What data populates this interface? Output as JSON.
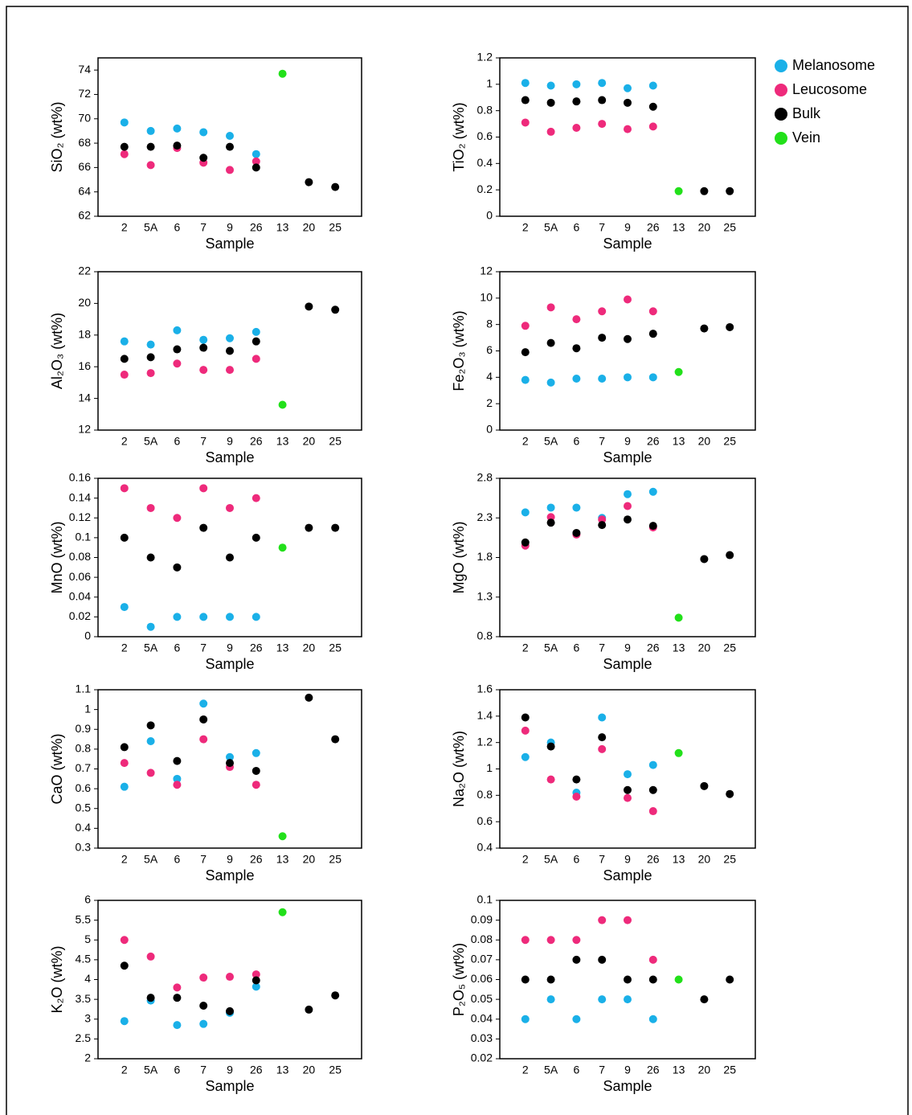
{
  "chart_data": [
    {
      "type": "scatter",
      "y_label": "SiO₂ (wt%)",
      "x_label": "Sample",
      "categories": [
        "2",
        "5A",
        "6",
        "7",
        "9",
        "26",
        "13",
        "20",
        "25"
      ],
      "ylim": [
        62,
        75
      ],
      "yticks": [
        62,
        64,
        66,
        68,
        70,
        72,
        74
      ],
      "series": [
        {
          "name": "Melanosome",
          "color": "#1ab0e8",
          "values": [
            69.7,
            69.0,
            69.2,
            68.9,
            68.6,
            67.1,
            null,
            null,
            null
          ]
        },
        {
          "name": "Leucosome",
          "color": "#ee2a7b",
          "values": [
            67.1,
            66.2,
            67.6,
            66.4,
            65.8,
            66.5,
            null,
            null,
            null
          ]
        },
        {
          "name": "Bulk",
          "color": "#000000",
          "values": [
            67.7,
            67.7,
            67.8,
            66.8,
            67.7,
            66.0,
            null,
            64.8,
            64.4
          ]
        },
        {
          "name": "Vein",
          "color": "#22e01a",
          "values": [
            null,
            null,
            null,
            null,
            null,
            null,
            73.7,
            null,
            null
          ]
        }
      ]
    },
    {
      "type": "scatter",
      "y_label": "TiO₂ (wt%)",
      "x_label": "Sample",
      "legend": "right",
      "categories": [
        "2",
        "5A",
        "6",
        "7",
        "9",
        "26",
        "13",
        "20",
        "25"
      ],
      "ylim": [
        0,
        1.2
      ],
      "yticks": [
        0,
        0.2,
        0.4,
        0.6,
        0.8,
        1,
        1.2
      ],
      "series": [
        {
          "name": "Melanosome",
          "color": "#1ab0e8",
          "values": [
            1.01,
            0.99,
            1.0,
            1.01,
            0.97,
            0.99,
            null,
            null,
            null
          ]
        },
        {
          "name": "Leucosome",
          "color": "#ee2a7b",
          "values": [
            0.71,
            0.64,
            0.67,
            0.7,
            0.66,
            0.68,
            null,
            null,
            null
          ]
        },
        {
          "name": "Bulk",
          "color": "#000000",
          "values": [
            0.88,
            0.86,
            0.87,
            0.88,
            0.86,
            0.83,
            null,
            0.19,
            0.19
          ]
        },
        {
          "name": "Vein",
          "color": "#22e01a",
          "values": [
            null,
            null,
            null,
            null,
            null,
            null,
            0.19,
            null,
            null
          ]
        }
      ]
    },
    {
      "type": "scatter",
      "y_label": "Al₂O₃ (wt%)",
      "x_label": "Sample",
      "categories": [
        "2",
        "5A",
        "6",
        "7",
        "9",
        "26",
        "13",
        "20",
        "25"
      ],
      "ylim": [
        12,
        22
      ],
      "yticks": [
        12,
        14,
        16,
        18,
        20,
        22
      ],
      "series": [
        {
          "name": "Melanosome",
          "color": "#1ab0e8",
          "values": [
            17.6,
            17.4,
            18.3,
            17.7,
            17.8,
            18.2,
            null,
            null,
            null
          ]
        },
        {
          "name": "Leucosome",
          "color": "#ee2a7b",
          "values": [
            15.5,
            15.6,
            16.2,
            15.8,
            15.8,
            16.5,
            null,
            null,
            null
          ]
        },
        {
          "name": "Bulk",
          "color": "#000000",
          "values": [
            16.5,
            16.6,
            17.1,
            17.2,
            17.0,
            17.6,
            null,
            19.8,
            19.6
          ]
        },
        {
          "name": "Vein",
          "color": "#22e01a",
          "values": [
            null,
            null,
            null,
            null,
            null,
            null,
            13.6,
            null,
            null
          ]
        }
      ]
    },
    {
      "type": "scatter",
      "y_label": "Fe₂O₃ (wt%)",
      "x_label": "Sample",
      "categories": [
        "2",
        "5A",
        "6",
        "7",
        "9",
        "26",
        "13",
        "20",
        "25"
      ],
      "ylim": [
        0,
        12
      ],
      "yticks": [
        0,
        2,
        4,
        6,
        8,
        10,
        12
      ],
      "series": [
        {
          "name": "Melanosome",
          "color": "#1ab0e8",
          "values": [
            3.8,
            3.6,
            3.9,
            3.9,
            4.0,
            4.0,
            null,
            null,
            null
          ]
        },
        {
          "name": "Leucosome",
          "color": "#ee2a7b",
          "values": [
            7.9,
            9.3,
            8.4,
            9.0,
            9.9,
            9.0,
            null,
            null,
            null
          ]
        },
        {
          "name": "Bulk",
          "color": "#000000",
          "values": [
            5.9,
            6.6,
            6.2,
            7.0,
            6.9,
            7.3,
            null,
            7.7,
            7.8
          ]
        },
        {
          "name": "Vein",
          "color": "#22e01a",
          "values": [
            null,
            null,
            null,
            null,
            null,
            null,
            4.4,
            null,
            null
          ]
        }
      ]
    },
    {
      "type": "scatter",
      "y_label": "MnO (wt%)",
      "x_label": "Sample",
      "categories": [
        "2",
        "5A",
        "6",
        "7",
        "9",
        "26",
        "13",
        "20",
        "25"
      ],
      "ylim": [
        0,
        0.16
      ],
      "yticks": [
        0,
        0.02,
        0.04,
        0.06,
        0.08,
        0.1,
        0.12,
        0.14,
        0.16
      ],
      "series": [
        {
          "name": "Melanosome",
          "color": "#1ab0e8",
          "values": [
            0.03,
            0.01,
            0.02,
            0.02,
            0.02,
            0.02,
            null,
            null,
            null
          ]
        },
        {
          "name": "Leucosome",
          "color": "#ee2a7b",
          "values": [
            0.15,
            0.13,
            0.12,
            0.15,
            0.13,
            0.14,
            null,
            null,
            null
          ]
        },
        {
          "name": "Bulk",
          "color": "#000000",
          "values": [
            0.1,
            0.08,
            0.07,
            0.11,
            0.08,
            0.1,
            null,
            0.11,
            0.11
          ]
        },
        {
          "name": "Vein",
          "color": "#22e01a",
          "values": [
            null,
            null,
            null,
            null,
            null,
            null,
            0.09,
            null,
            null
          ]
        }
      ]
    },
    {
      "type": "scatter",
      "y_label": "MgO (wt%)",
      "x_label": "Sample",
      "categories": [
        "2",
        "5A",
        "6",
        "7",
        "9",
        "26",
        "13",
        "20",
        "25"
      ],
      "ylim": [
        0.8,
        2.8
      ],
      "yticks": [
        0.8,
        1.3,
        1.8,
        2.3,
        2.8
      ],
      "series": [
        {
          "name": "Melanosome",
          "color": "#1ab0e8",
          "values": [
            2.37,
            2.43,
            2.43,
            2.3,
            2.6,
            2.63,
            null,
            null,
            null
          ]
        },
        {
          "name": "Leucosome",
          "color": "#ee2a7b",
          "values": [
            1.95,
            2.31,
            2.09,
            2.28,
            2.45,
            2.18,
            null,
            null,
            null
          ]
        },
        {
          "name": "Bulk",
          "color": "#000000",
          "values": [
            1.99,
            2.24,
            2.11,
            2.21,
            2.28,
            2.2,
            null,
            1.78,
            1.83
          ]
        },
        {
          "name": "Vein",
          "color": "#22e01a",
          "values": [
            null,
            null,
            null,
            null,
            null,
            null,
            1.04,
            null,
            null
          ]
        }
      ]
    },
    {
      "type": "scatter",
      "y_label": "CaO (wt%)",
      "x_label": "Sample",
      "categories": [
        "2",
        "5A",
        "6",
        "7",
        "9",
        "26",
        "13",
        "20",
        "25"
      ],
      "ylim": [
        0.3,
        1.1
      ],
      "yticks": [
        0.3,
        0.4,
        0.5,
        0.6,
        0.7,
        0.8,
        0.9,
        1,
        1.1
      ],
      "series": [
        {
          "name": "Melanosome",
          "color": "#1ab0e8",
          "values": [
            0.61,
            0.84,
            0.65,
            1.03,
            0.76,
            0.78,
            null,
            null,
            null
          ]
        },
        {
          "name": "Leucosome",
          "color": "#ee2a7b",
          "values": [
            0.73,
            0.68,
            0.62,
            0.85,
            0.71,
            0.62,
            null,
            null,
            null
          ]
        },
        {
          "name": "Bulk",
          "color": "#000000",
          "values": [
            0.81,
            0.92,
            0.74,
            0.95,
            0.73,
            0.69,
            null,
            1.06,
            0.85
          ]
        },
        {
          "name": "Vein",
          "color": "#22e01a",
          "values": [
            null,
            null,
            null,
            null,
            null,
            null,
            0.36,
            null,
            null
          ]
        }
      ]
    },
    {
      "type": "scatter",
      "y_label": "Na₂O (wt%)",
      "x_label": "Sample",
      "categories": [
        "2",
        "5A",
        "6",
        "7",
        "9",
        "26",
        "13",
        "20",
        "25"
      ],
      "ylim": [
        0.4,
        1.6
      ],
      "yticks": [
        0.4,
        0.6,
        0.8,
        1,
        1.2,
        1.4,
        1.6
      ],
      "series": [
        {
          "name": "Melanosome",
          "color": "#1ab0e8",
          "values": [
            1.09,
            1.2,
            0.82,
            1.39,
            0.96,
            1.03,
            null,
            null,
            null
          ]
        },
        {
          "name": "Leucosome",
          "color": "#ee2a7b",
          "values": [
            1.29,
            0.92,
            0.79,
            1.15,
            0.78,
            0.68,
            null,
            null,
            null
          ]
        },
        {
          "name": "Bulk",
          "color": "#000000",
          "values": [
            1.39,
            1.17,
            0.92,
            1.24,
            0.84,
            0.84,
            null,
            0.87,
            0.81
          ]
        },
        {
          "name": "Vein",
          "color": "#22e01a",
          "values": [
            null,
            null,
            null,
            null,
            null,
            null,
            1.12,
            null,
            null
          ]
        }
      ]
    },
    {
      "type": "scatter",
      "y_label": "K₂O (wt%)",
      "x_label": "Sample",
      "categories": [
        "2",
        "5A",
        "6",
        "7",
        "9",
        "26",
        "13",
        "20",
        "25"
      ],
      "ylim": [
        2,
        6
      ],
      "yticks": [
        2,
        2.5,
        3,
        3.5,
        4,
        4.5,
        5,
        5.5,
        6
      ],
      "series": [
        {
          "name": "Melanosome",
          "color": "#1ab0e8",
          "values": [
            2.95,
            3.47,
            2.85,
            2.88,
            3.16,
            3.82,
            null,
            null,
            null
          ]
        },
        {
          "name": "Leucosome",
          "color": "#ee2a7b",
          "values": [
            5.0,
            4.58,
            3.8,
            4.05,
            4.07,
            4.13,
            null,
            null,
            null
          ]
        },
        {
          "name": "Bulk",
          "color": "#000000",
          "values": [
            4.35,
            3.54,
            3.54,
            3.34,
            3.2,
            3.98,
            null,
            3.24,
            3.6
          ]
        },
        {
          "name": "Vein",
          "color": "#22e01a",
          "values": [
            null,
            null,
            null,
            null,
            null,
            null,
            5.7,
            null,
            null
          ]
        }
      ]
    },
    {
      "type": "scatter",
      "y_label": "P₂O₅ (wt%)",
      "x_label": "Sample",
      "categories": [
        "2",
        "5A",
        "6",
        "7",
        "9",
        "26",
        "13",
        "20",
        "25"
      ],
      "ylim": [
        0.02,
        0.1
      ],
      "yticks": [
        0.02,
        0.03,
        0.04,
        0.05,
        0.06,
        0.07,
        0.08,
        0.09,
        0.1
      ],
      "series": [
        {
          "name": "Melanosome",
          "color": "#1ab0e8",
          "values": [
            0.04,
            0.05,
            0.04,
            0.05,
            0.05,
            0.04,
            null,
            null,
            null
          ]
        },
        {
          "name": "Leucosome",
          "color": "#ee2a7b",
          "values": [
            0.08,
            0.08,
            0.08,
            0.09,
            0.09,
            0.07,
            null,
            null,
            null
          ]
        },
        {
          "name": "Bulk",
          "color": "#000000",
          "values": [
            0.06,
            0.06,
            0.07,
            0.07,
            0.06,
            0.06,
            null,
            0.05,
            0.06
          ]
        },
        {
          "name": "Vein",
          "color": "#22e01a",
          "values": [
            null,
            null,
            null,
            null,
            null,
            null,
            0.06,
            null,
            null
          ]
        }
      ]
    }
  ]
}
